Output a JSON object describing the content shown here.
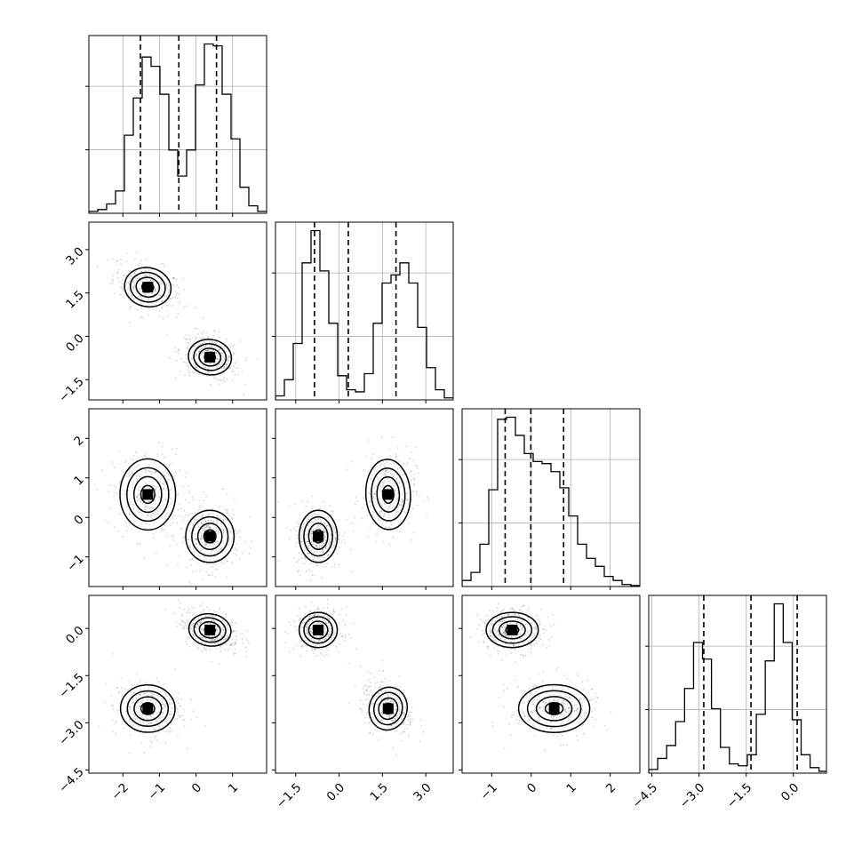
{
  "chart_data": {
    "type": "corner",
    "dimensions": 4,
    "ranges": [
      [
        -2.93,
        1.93
      ],
      [
        -2.2,
        3.95
      ],
      [
        -1.75,
        2.75
      ],
      [
        -4.6,
        1.05
      ]
    ],
    "ticks": [
      {
        "values": [
          -2,
          -1,
          0,
          1
        ],
        "labels": [
          "−2",
          "−1",
          "0",
          "1"
        ]
      },
      {
        "values": [
          -1.5,
          0.0,
          1.5,
          3.0
        ],
        "labels": [
          "−1.5",
          "0.0",
          "1.5",
          "3.0"
        ]
      },
      {
        "values": [
          -1,
          0,
          1,
          2
        ],
        "labels": [
          "−1",
          "0",
          "1",
          "2"
        ]
      },
      {
        "values": [
          -4.5,
          -3.0,
          -1.5,
          0.0
        ],
        "labels": [
          "−4.5",
          "−3.0",
          "−1.5",
          "0.0"
        ]
      }
    ],
    "histograms": [
      {
        "bin_start": -2.93,
        "bin_width": 0.243,
        "counts": [
          0.01,
          0.02,
          0.05,
          0.12,
          0.42,
          0.62,
          0.84,
          0.79,
          0.64,
          0.34,
          0.2,
          0.34,
          0.69,
          0.91,
          0.9,
          0.64,
          0.4,
          0.14,
          0.04,
          0.01
        ],
        "quantiles": [
          -1.52,
          -0.47,
          0.56
        ]
      },
      {
        "bin_start": -2.2,
        "bin_width": 0.3075,
        "counts": [
          0.02,
          0.1,
          0.28,
          0.68,
          0.84,
          0.64,
          0.38,
          0.12,
          0.05,
          0.04,
          0.13,
          0.38,
          0.58,
          0.62,
          0.68,
          0.58,
          0.36,
          0.16,
          0.05,
          0.01
        ],
        "quantiles": [
          -0.85,
          0.32,
          1.97
        ]
      },
      {
        "bin_start": -1.75,
        "bin_width": 0.225,
        "counts": [
          0.03,
          0.07,
          0.21,
          0.48,
          0.83,
          0.84,
          0.75,
          0.66,
          0.62,
          0.61,
          0.57,
          0.49,
          0.35,
          0.21,
          0.14,
          0.1,
          0.05,
          0.03,
          0.01,
          0.005
        ],
        "quantiles": [
          -0.66,
          -0.01,
          0.82
        ]
      },
      {
        "bin_start": -4.6,
        "bin_width": 0.285,
        "counts": [
          0.02,
          0.08,
          0.15,
          0.28,
          0.46,
          0.71,
          0.62,
          0.35,
          0.14,
          0.05,
          0.04,
          0.1,
          0.32,
          0.61,
          0.92,
          0.71,
          0.29,
          0.1,
          0.03,
          0.01
        ],
        "quantiles": [
          -2.85,
          -1.35,
          0.12
        ]
      }
    ],
    "clusters": [
      {
        "center": [
          -1.32,
          1.7,
          0.58,
          -2.55
        ],
        "sd": [
          0.38,
          0.38,
          0.45,
          0.38
        ],
        "weight": 0.45
      },
      {
        "center": [
          0.38,
          -0.72,
          -0.48,
          -0.05
        ],
        "sd": [
          0.33,
          0.33,
          0.33,
          0.28
        ],
        "weight": 0.55
      }
    ],
    "contour_levels": [
      "0.5-sigma",
      "1-sigma",
      "1.5-sigma",
      "2-sigma"
    ]
  }
}
